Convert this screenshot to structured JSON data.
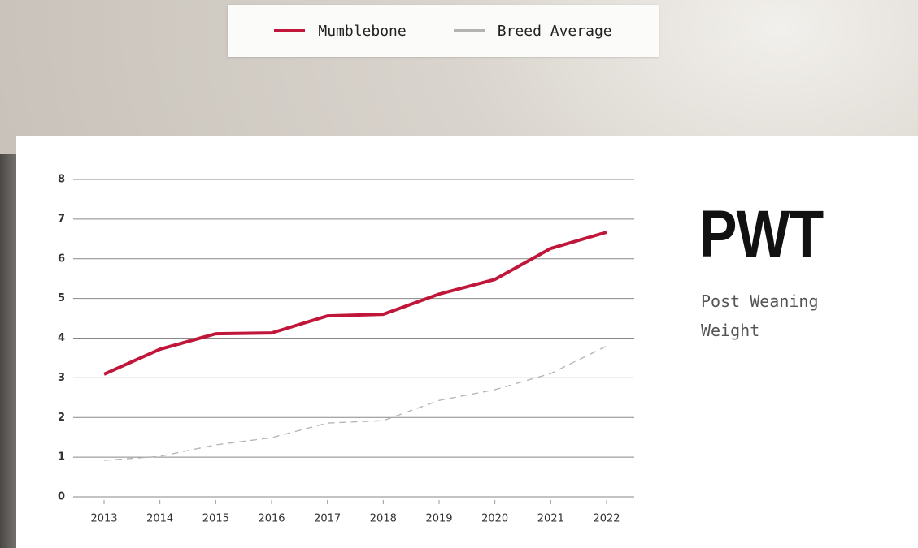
{
  "chart_data": {
    "type": "line",
    "title": "PWT",
    "subtitle": "Post Weaning Weight",
    "categories": [
      "2013",
      "2014",
      "2015",
      "2016",
      "2017",
      "2018",
      "2019",
      "2020",
      "2021",
      "2022"
    ],
    "series": [
      {
        "name": "Mumblebone",
        "color": "#c0163a",
        "dashed": false,
        "values": [
          3.09,
          3.72,
          4.11,
          4.13,
          4.56,
          4.6,
          5.11,
          5.48,
          6.26,
          6.67
        ]
      },
      {
        "name": "Breed Average",
        "color": "#b3b3b3",
        "dashed": true,
        "values": [
          0.92,
          1.02,
          1.31,
          1.49,
          1.86,
          1.92,
          2.43,
          2.7,
          3.11,
          3.8
        ]
      }
    ],
    "ylim": [
      0,
      8
    ],
    "yticks": [
      0,
      1,
      2,
      3,
      4,
      5,
      6,
      7,
      8
    ],
    "grid": true
  }
}
